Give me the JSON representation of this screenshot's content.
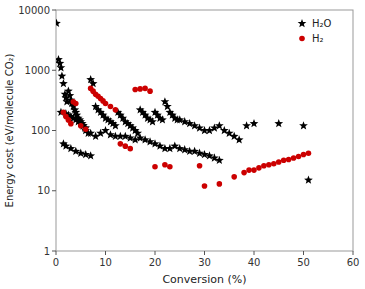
{
  "chart_data": {
    "type": "scatter",
    "xlabel": "Conversion (%)",
    "ylabel": "Energy cost (eV/molecule CO₂)",
    "log": "y",
    "xlim": [
      0,
      60
    ],
    "ylim": [
      1,
      10000
    ],
    "xticks": [
      0,
      10,
      20,
      30,
      40,
      50,
      60
    ],
    "yticks": [
      1,
      10,
      100,
      1000,
      10000
    ],
    "grid": false,
    "legend": "upper right",
    "series": [
      {
        "name": "H₂O",
        "color": "#000000",
        "marker": "star",
        "x": [
          0.1,
          0.5,
          0.8,
          1.0,
          1.2,
          1.5,
          1.8,
          2.0,
          2.2,
          2.5,
          2.8,
          3.0,
          3.2,
          3.5,
          3.8,
          4.0,
          4.2,
          4.5,
          4.8,
          5.0,
          5.3,
          5.5,
          5.8,
          6.0,
          6.5,
          7.0,
          7.5,
          8.0,
          8.5,
          9.0,
          9.5,
          10.0,
          10.5,
          11.0,
          11.5,
          12.0,
          12.5,
          13.0,
          13.5,
          14.0,
          14.5,
          15.0,
          15.5,
          16.0,
          16.5,
          17.0,
          17.5,
          18.0,
          18.5,
          19.0,
          19.5,
          20.0,
          20.5,
          21.0,
          21.5,
          22.0,
          22.5,
          23.0,
          23.5,
          24.0,
          24.5,
          25.0,
          26.0,
          27.0,
          28.0,
          29.0,
          30.0,
          31.0,
          32.0,
          33.0,
          34.0,
          35.0,
          36.0,
          37.0,
          38.5,
          40.0,
          45.0,
          50.0,
          51.0,
          1.0,
          2.0,
          2.5,
          3.0,
          3.5,
          4.0,
          4.5,
          5.0,
          5.5,
          6.0,
          7.0,
          8.0,
          9.0,
          10.0,
          11.0,
          12.0,
          13.0,
          14.0,
          15.0,
          16.0,
          17.0,
          18.0,
          19.0,
          20.0,
          21.0,
          22.0,
          23.0,
          24.0,
          25.0,
          26.0,
          27.0,
          28.0,
          29.0,
          30.0,
          31.0,
          32.0,
          33.0,
          1.5,
          2.0,
          3.0,
          4.0,
          5.0,
          6.0,
          7.0
        ],
        "values": [
          6000,
          1500,
          1300,
          1100,
          800,
          600,
          400,
          350,
          300,
          450,
          380,
          320,
          280,
          250,
          220,
          200,
          180,
          160,
          150,
          140,
          130,
          120,
          110,
          100,
          90,
          700,
          600,
          250,
          220,
          200,
          180,
          160,
          150,
          140,
          130,
          120,
          200,
          180,
          160,
          140,
          130,
          120,
          110,
          100,
          90,
          220,
          200,
          180,
          160,
          150,
          140,
          200,
          180,
          160,
          150,
          300,
          250,
          200,
          180,
          160,
          150,
          150,
          140,
          130,
          120,
          110,
          100,
          100,
          110,
          120,
          100,
          90,
          80,
          70,
          120,
          130,
          130,
          120,
          15,
          200,
          190,
          180,
          170,
          160,
          150,
          140,
          130,
          120,
          110,
          90,
          80,
          90,
          100,
          85,
          80,
          80,
          80,
          75,
          70,
          75,
          70,
          65,
          60,
          55,
          50,
          50,
          55,
          50,
          48,
          45,
          45,
          42,
          40,
          38,
          35,
          32,
          60,
          55,
          50,
          45,
          42,
          40,
          38
        ]
      },
      {
        "name": "H₂",
        "color": "#cc0000",
        "marker": "circle",
        "x": [
          1.5,
          2.0,
          2.5,
          3.0,
          3.5,
          4.0,
          5.0,
          6.0,
          7.0,
          7.5,
          8.0,
          8.5,
          9.0,
          9.5,
          10.0,
          11.0,
          12.0,
          13.0,
          14.0,
          15.0,
          16.0,
          17.0,
          18.0,
          19.0,
          20.0,
          22.0,
          23.0,
          29.0,
          30.0,
          33.0,
          36.0,
          38.0,
          39.0,
          40.0,
          41.0,
          42.0,
          43.0,
          44.0,
          45.0,
          46.0,
          47.0,
          48.0,
          49.0,
          50.0,
          51.0
        ],
        "values": [
          200,
          170,
          150,
          130,
          300,
          280,
          120,
          105,
          500,
          450,
          400,
          370,
          340,
          310,
          280,
          250,
          220,
          60,
          55,
          50,
          480,
          490,
          500,
          450,
          25,
          27,
          25,
          26,
          12,
          13,
          17,
          20,
          22,
          22,
          24,
          26,
          27,
          28,
          30,
          32,
          33,
          35,
          37,
          40,
          42
        ]
      }
    ]
  }
}
